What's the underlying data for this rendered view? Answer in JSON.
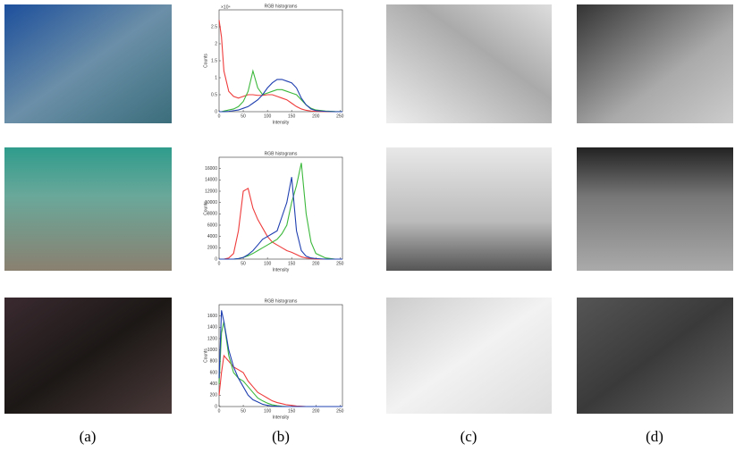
{
  "chart_data": [
    {
      "type": "line",
      "title": "RGB histograms",
      "x_label": "Intensity",
      "y_label": "Counts",
      "y_exponent": "×10⁴",
      "x": [
        0,
        5,
        10,
        20,
        30,
        40,
        50,
        60,
        70,
        80,
        90,
        100,
        110,
        120,
        130,
        140,
        150,
        160,
        170,
        180,
        190,
        200,
        220,
        240,
        255
      ],
      "xlim": [
        0,
        255
      ],
      "xticks": [
        0,
        50,
        100,
        150,
        200,
        250
      ],
      "ylim": [
        0,
        30000
      ],
      "yticks": [
        {
          "value": 0,
          "label": "0"
        },
        {
          "value": 5000,
          "label": "0.5"
        },
        {
          "value": 10000,
          "label": "1"
        },
        {
          "value": 15000,
          "label": "1.5"
        },
        {
          "value": 20000,
          "label": "2"
        },
        {
          "value": 25000,
          "label": "2.5"
        }
      ],
      "series": [
        {
          "color": "#ef3b3b",
          "values": [
            27000,
            22000,
            12000,
            6000,
            4500,
            4000,
            4500,
            5000,
            5000,
            4800,
            4800,
            5000,
            5000,
            4500,
            4000,
            3500,
            2500,
            1500,
            800,
            400,
            200,
            100,
            50,
            0,
            0
          ]
        },
        {
          "color": "#3cb83c",
          "values": [
            0,
            0,
            200,
            500,
            800,
            1500,
            3000,
            6000,
            12000,
            7000,
            5000,
            5500,
            6000,
            6500,
            6500,
            6000,
            5500,
            5000,
            3500,
            2000,
            1000,
            500,
            200,
            50,
            0
          ]
        },
        {
          "color": "#1f3fb0",
          "values": [
            0,
            0,
            0,
            100,
            300,
            500,
            1000,
            1500,
            2500,
            3500,
            5000,
            7000,
            8500,
            9500,
            9500,
            9000,
            8500,
            7000,
            4000,
            2000,
            800,
            300,
            100,
            0,
            0
          ]
        }
      ]
    },
    {
      "type": "line",
      "title": "RGB histograms",
      "x_label": "Intensity",
      "y_label": "Counts",
      "x": [
        0,
        5,
        10,
        20,
        30,
        40,
        50,
        60,
        70,
        80,
        90,
        100,
        110,
        120,
        130,
        140,
        150,
        160,
        170,
        180,
        190,
        200,
        220,
        240,
        255
      ],
      "xlim": [
        0,
        255
      ],
      "xticks": [
        0,
        50,
        100,
        150,
        200,
        250
      ],
      "ylim": [
        0,
        18000
      ],
      "yticks": [
        0,
        2000,
        4000,
        6000,
        8000,
        10000,
        12000,
        14000,
        16000
      ],
      "series": [
        {
          "color": "#ef3b3b",
          "values": [
            0,
            0,
            0,
            200,
            1000,
            5000,
            12000,
            12500,
            9000,
            7000,
            5500,
            4000,
            3000,
            2500,
            2000,
            1500,
            1200,
            800,
            400,
            200,
            100,
            0,
            0,
            0,
            0
          ]
        },
        {
          "color": "#3cb83c",
          "values": [
            0,
            0,
            0,
            0,
            0,
            100,
            300,
            600,
            1000,
            1500,
            2000,
            2500,
            3000,
            3500,
            4500,
            6000,
            10000,
            13000,
            17000,
            8000,
            3000,
            1000,
            200,
            0,
            0
          ]
        },
        {
          "color": "#1f3fb0",
          "values": [
            0,
            0,
            0,
            0,
            0,
            100,
            300,
            800,
            1500,
            2500,
            3500,
            4000,
            4500,
            5000,
            7500,
            10000,
            14500,
            5000,
            1500,
            500,
            200,
            100,
            0,
            0,
            0
          ]
        }
      ]
    },
    {
      "type": "line",
      "title": "RGB histograms",
      "x_label": "Intensity",
      "y_label": "Counts",
      "x": [
        0,
        5,
        10,
        20,
        30,
        40,
        50,
        60,
        70,
        80,
        90,
        100,
        110,
        120,
        130,
        140,
        150,
        160,
        170,
        180,
        190,
        200,
        220,
        240,
        255
      ],
      "xlim": [
        0,
        255
      ],
      "xticks": [
        0,
        50,
        100,
        150,
        200,
        250
      ],
      "ylim": [
        0,
        1800
      ],
      "yticks": [
        0,
        200,
        400,
        600,
        800,
        1000,
        1200,
        1400,
        1600
      ],
      "series": [
        {
          "color": "#ef3b3b",
          "values": [
            200,
            600,
            900,
            800,
            700,
            650,
            600,
            450,
            350,
            250,
            200,
            150,
            100,
            70,
            50,
            30,
            20,
            10,
            5,
            0,
            0,
            0,
            0,
            0,
            0
          ]
        },
        {
          "color": "#3cb83c",
          "values": [
            400,
            1300,
            1500,
            900,
            600,
            500,
            450,
            350,
            250,
            150,
            100,
            60,
            30,
            15,
            5,
            0,
            0,
            0,
            0,
            0,
            0,
            0,
            0,
            0,
            0
          ]
        },
        {
          "color": "#1f3fb0",
          "values": [
            500,
            1700,
            1500,
            1000,
            700,
            500,
            350,
            200,
            120,
            80,
            40,
            20,
            10,
            5,
            0,
            0,
            0,
            0,
            0,
            0,
            0,
            0,
            0,
            0,
            0
          ]
        }
      ]
    }
  ],
  "captions": [
    "(a)",
    "(b)",
    "(c)",
    "(d)"
  ]
}
